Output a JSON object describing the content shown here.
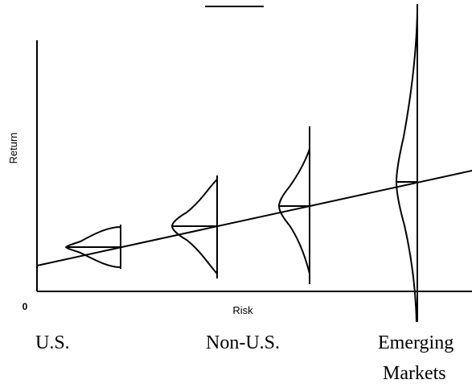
{
  "diagram": {
    "y_axis_label": "Return",
    "x_axis_label": "Risk",
    "origin_label": "0",
    "markets": [
      {
        "name": "U.S."
      },
      {
        "name": "Non-U.S."
      },
      {
        "name": "Emerging",
        "name_line2": "Markets"
      }
    ],
    "colors": {
      "stroke": "#000000",
      "background": "#ffffff"
    }
  }
}
